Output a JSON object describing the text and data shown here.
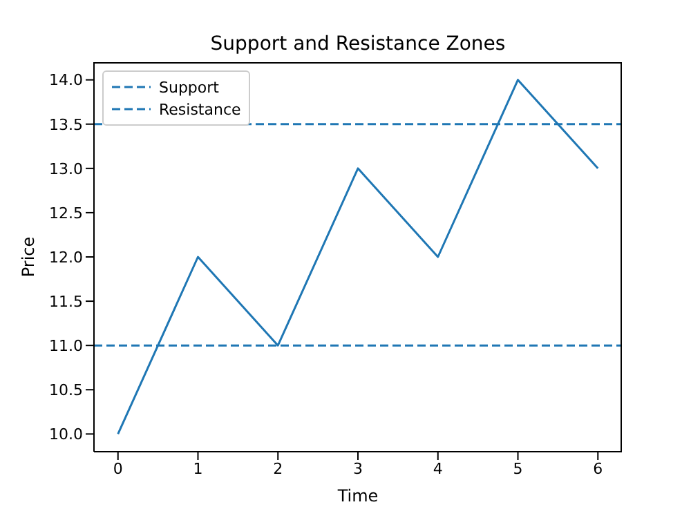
{
  "chart_data": {
    "type": "line",
    "title": "Support and Resistance Zones",
    "xlabel": "Time",
    "ylabel": "Price",
    "x": [
      0,
      1,
      2,
      3,
      4,
      5,
      6
    ],
    "series": [
      {
        "color": "#1f77b4",
        "values": [
          10,
          12,
          11,
          13,
          12,
          14,
          13
        ]
      }
    ],
    "xlim": [
      -0.3,
      6.3
    ],
    "xticks": [
      0,
      1,
      2,
      3,
      4,
      5,
      6
    ],
    "ylim": [
      9.8,
      14.2
    ],
    "yticks": [
      {
        "value": 10,
        "label": "10.0"
      },
      {
        "value": 10.5,
        "label": "10.5"
      },
      {
        "value": 11,
        "label": "11.0"
      },
      {
        "value": 11.5,
        "label": "11.5"
      },
      {
        "value": 12,
        "label": "12.0"
      },
      {
        "value": 12.5,
        "label": "12.5"
      },
      {
        "value": 13,
        "label": "13.0"
      },
      {
        "value": 13.5,
        "label": "13.5"
      },
      {
        "value": 14,
        "label": "14.0"
      }
    ],
    "ref_lines": [
      {
        "axis": "y",
        "value": 11,
        "label": "Support",
        "color": "#1f77b4",
        "line_style": "dashed"
      },
      {
        "axis": "y",
        "value": 13.5,
        "label": "Resistance",
        "color": "#1f77b4",
        "line_style": "dashed"
      }
    ],
    "marker": "none",
    "line_style": "solid",
    "grid": false,
    "legend": "top left"
  }
}
